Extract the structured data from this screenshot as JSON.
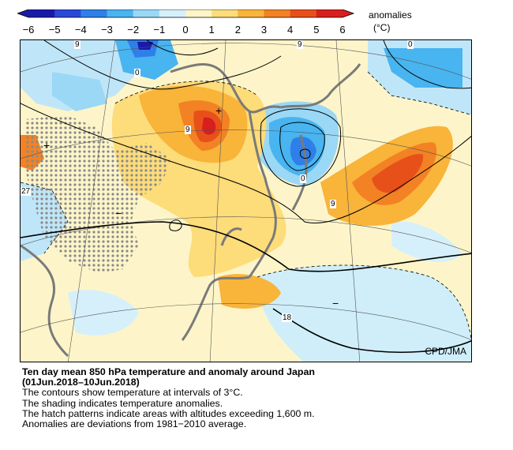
{
  "legend": {
    "title": "anomalies",
    "unit": "(°C)",
    "ticks": [
      "−6",
      "−5",
      "−4",
      "−3",
      "−2",
      "−1",
      "0",
      "1",
      "2",
      "3",
      "4",
      "5",
      "6"
    ],
    "colors": [
      "#1a1aa8",
      "#2a48d8",
      "#2f7fe8",
      "#48b4f0",
      "#9ad8f6",
      "#d6f0fb",
      "#fdf5c9",
      "#fddc7a",
      "#f9b43a",
      "#f28224",
      "#e8501a",
      "#d81e1e"
    ]
  },
  "map": {
    "contour_labels": [
      "9",
      "9",
      "0",
      "0",
      "9",
      "0",
      "9",
      "27",
      "18"
    ],
    "extrema_marks": [
      "+",
      "+",
      "−",
      "−"
    ],
    "credit": "CPD/JMA"
  },
  "caption": {
    "title": "Ten day mean 850 hPa temperature and anomaly around Japan",
    "period": "(01Jun.2018–10Jun.2018)",
    "lines": [
      "The contours show temperature at intervals of 3°C.",
      "The shading indicates temperature anomalies.",
      "The hatch patterns indicate areas with altitudes exceeding 1,600 m.",
      "Anomalies are deviations from 1981−2010 average."
    ]
  }
}
